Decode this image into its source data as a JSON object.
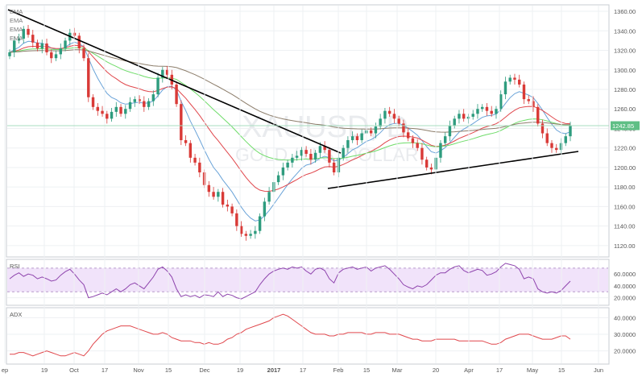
{
  "symbol": {
    "ticker": "XAUUSD, D",
    "description": "GOLD / U.S. DOLLAR"
  },
  "legend": [
    "EMA",
    "EMA",
    "EMA",
    "EMA"
  ],
  "colors": {
    "up": "#2e9c7e",
    "down": "#d93a37",
    "wick": "#555555",
    "ema_fast": "#6aa3d8",
    "ema_mid": "#e0474c",
    "ema_slow": "#6fdc6a",
    "ema_long": "#8c7d6a",
    "rsi": "#8e44ad",
    "rsi_band": "#f1e3fa",
    "adx": "#e0474c",
    "trendline": "#000000",
    "price_tag": "#5fbf85",
    "axis_text": "#555555",
    "grid": "#eef0f3"
  },
  "chart_data": {
    "type": "candlestick",
    "x_labels": [
      "ep",
      "19",
      "Oct",
      "17",
      "Nov",
      "15",
      "Dec",
      "19",
      "2017",
      "17",
      "Feb",
      "15",
      "Mar",
      "20",
      "Apr",
      "17",
      "May",
      "15",
      "Jun"
    ],
    "price": {
      "ylim": [
        1110,
        1365
      ],
      "y_ticks": [
        1360,
        1340,
        1320,
        1300,
        1280,
        1260,
        1240,
        1220,
        1200,
        1180,
        1160,
        1140,
        1120
      ],
      "y_tick_labels": [
        "1360.00",
        "1340.00",
        "1320.00",
        "1300.00",
        "1280.00",
        "1260.00",
        "1240.00",
        "1220.00",
        "1200.00",
        "1180.00",
        "1160.00",
        "1140.00",
        "1120.00"
      ],
      "last_price": 1242.85,
      "last_price_label": "1242.85",
      "closes": [
        1318,
        1330,
        1332,
        1342,
        1336,
        1328,
        1322,
        1327,
        1318,
        1312,
        1316,
        1322,
        1330,
        1338,
        1335,
        1322,
        1312,
        1272,
        1262,
        1258,
        1255,
        1250,
        1257,
        1262,
        1255,
        1260,
        1267,
        1270,
        1268,
        1262,
        1268,
        1275,
        1292,
        1300,
        1295,
        1285,
        1265,
        1228,
        1225,
        1210,
        1205,
        1195,
        1182,
        1175,
        1170,
        1175,
        1162,
        1160,
        1153,
        1140,
        1132,
        1130,
        1132,
        1135,
        1150,
        1165,
        1175,
        1185,
        1192,
        1200,
        1205,
        1210,
        1212,
        1218,
        1214,
        1208,
        1215,
        1222,
        1218,
        1205,
        1195,
        1210,
        1220,
        1228,
        1232,
        1228,
        1235,
        1238,
        1235,
        1242,
        1250,
        1258,
        1255,
        1250,
        1245,
        1236,
        1230,
        1225,
        1220,
        1208,
        1200,
        1198,
        1210,
        1225,
        1232,
        1243,
        1250,
        1255,
        1250,
        1252,
        1255,
        1260,
        1262,
        1258,
        1255,
        1260,
        1275,
        1288,
        1292,
        1290,
        1285,
        1270,
        1268,
        1262,
        1245,
        1235,
        1225,
        1220,
        1218,
        1225,
        1232,
        1242.85
      ]
    },
    "moving_averages": [
      "EMA",
      "EMA",
      "EMA",
      "EMA"
    ],
    "rsi": {
      "label": "RSI",
      "ylim": [
        10,
        82
      ],
      "y_ticks": [
        60,
        40,
        20
      ],
      "y_tick_labels": [
        "60.0000",
        "40.0000",
        "20.0000"
      ],
      "band": [
        30,
        70
      ],
      "values": [
        52,
        58,
        62,
        56,
        60,
        58,
        52,
        55,
        52,
        48,
        50,
        58,
        64,
        68,
        60,
        50,
        42,
        20,
        22,
        25,
        28,
        25,
        30,
        35,
        30,
        35,
        42,
        45,
        40,
        35,
        45,
        55,
        68,
        72,
        65,
        55,
        35,
        22,
        25,
        22,
        24,
        20,
        25,
        24,
        22,
        30,
        22,
        26,
        24,
        20,
        18,
        22,
        26,
        30,
        42,
        52,
        60,
        65,
        68,
        70,
        68,
        72,
        70,
        72,
        65,
        60,
        68,
        70,
        66,
        52,
        45,
        62,
        68,
        70,
        72,
        68,
        70,
        72,
        65,
        70,
        72,
        74,
        68,
        60,
        52,
        42,
        38,
        35,
        40,
        38,
        42,
        50,
        58,
        62,
        62,
        68,
        72,
        74,
        66,
        62,
        65,
        68,
        66,
        58,
        60,
        64,
        72,
        78,
        76,
        74,
        68,
        52,
        55,
        52,
        35,
        30,
        28,
        30,
        28,
        32,
        40,
        48
      ]
    },
    "adx": {
      "label": "ADX",
      "ylim": [
        13,
        45
      ],
      "y_ticks": [
        40,
        30,
        20
      ],
      "y_tick_labels": [
        "40.0000",
        "30.0000",
        "20.0000"
      ],
      "values": [
        18,
        18,
        19,
        19,
        18,
        17,
        18,
        19,
        20,
        19,
        18,
        17,
        17,
        18,
        19,
        18,
        17,
        20,
        24,
        27,
        30,
        32,
        33,
        34,
        35,
        35,
        35,
        34,
        33,
        32,
        31,
        30,
        30,
        31,
        30,
        28,
        27,
        26,
        26,
        26,
        25,
        25,
        24,
        25,
        24,
        24,
        25,
        27,
        28,
        30,
        31,
        33,
        34,
        35,
        36,
        37,
        38,
        40,
        41,
        42,
        41,
        39,
        37,
        35,
        33,
        31,
        30,
        30,
        30,
        29,
        29,
        30,
        30,
        31,
        31,
        31,
        31,
        30,
        30,
        31,
        31,
        31,
        30,
        30,
        30,
        29,
        28,
        27,
        27,
        26,
        26,
        26,
        27,
        27,
        27,
        27,
        27,
        26,
        26,
        26,
        26,
        26,
        26,
        25,
        24,
        24,
        25,
        27,
        28,
        29,
        30,
        30,
        30,
        29,
        28,
        27,
        27,
        27,
        28,
        29,
        29,
        27
      ]
    }
  }
}
